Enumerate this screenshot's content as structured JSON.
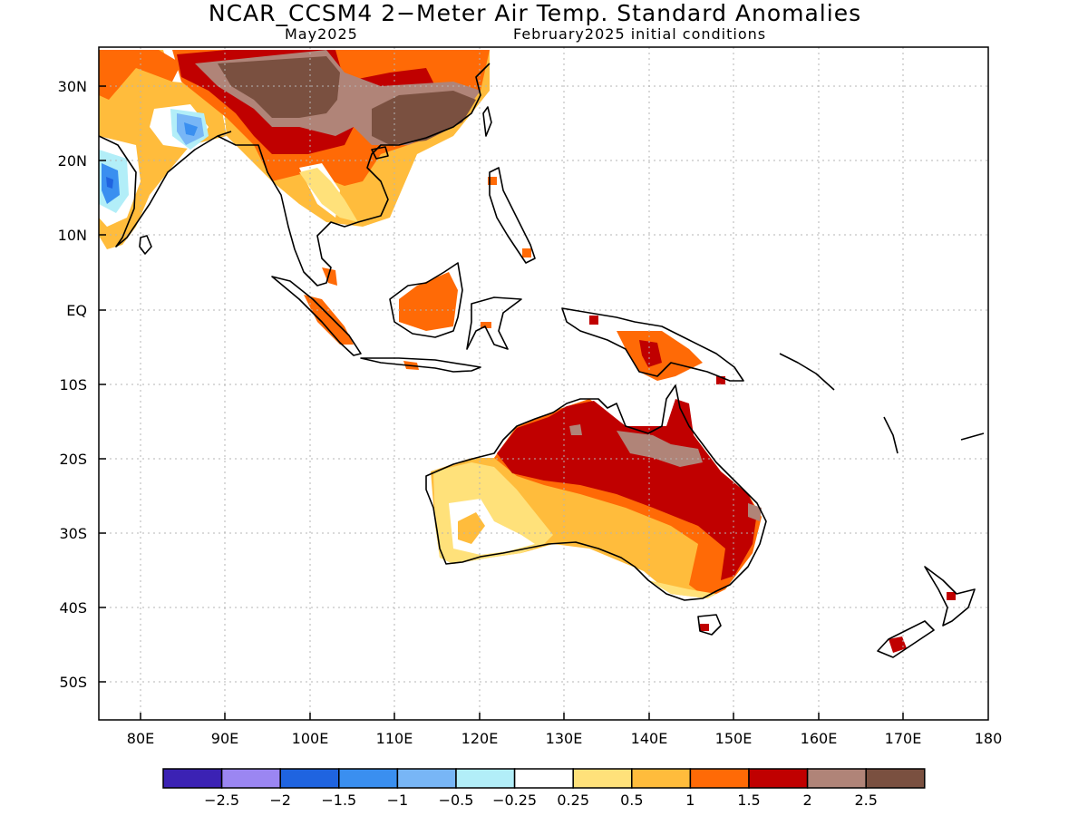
{
  "title": "NCAR_CCSM4 2−Meter Air Temp. Standard Anomalies",
  "subtitle_left": "May2025",
  "subtitle_right": "February2025 initial conditions",
  "map": {
    "lat_labels": [
      "30N",
      "20N",
      "10N",
      "EQ",
      "10S",
      "20S",
      "30S",
      "40S",
      "50S"
    ],
    "lon_labels": [
      "80E",
      "90E",
      "100E",
      "110E",
      "120E",
      "130E",
      "140E",
      "150E",
      "160E",
      "170E",
      "180"
    ],
    "lon_range": [
      75,
      180
    ],
    "lat_range": [
      -55,
      35
    ]
  },
  "colorbar": {
    "colors": [
      "#3b22b4",
      "#9b86f2",
      "#1f64e0",
      "#3a8ff0",
      "#78b6f6",
      "#b2eef8",
      "#ffffff",
      "#ffe17a",
      "#ffbc3c",
      "#ff6a06",
      "#c00000",
      "#b08478",
      "#7a5040"
    ],
    "labels": [
      "−2.5",
      "−2",
      "−1.5",
      "−1",
      "−0.5",
      "−0.25",
      "0.25",
      "0.5",
      "1",
      "1.5",
      "2",
      "2.5"
    ]
  },
  "colors": {
    "white": "#ffffff",
    "light_yellow": "#ffe17a",
    "yellow_orange": "#ffbc3c",
    "orange": "#ff6a06",
    "dark_red": "#c00000",
    "light_brown": "#b08478",
    "dark_brown": "#7a5040",
    "light_blue": "#78b6f6",
    "blue": "#3a8ff0",
    "cyan": "#b2eef8",
    "coastline": "#000000",
    "grid": "#b4b4b4"
  }
}
